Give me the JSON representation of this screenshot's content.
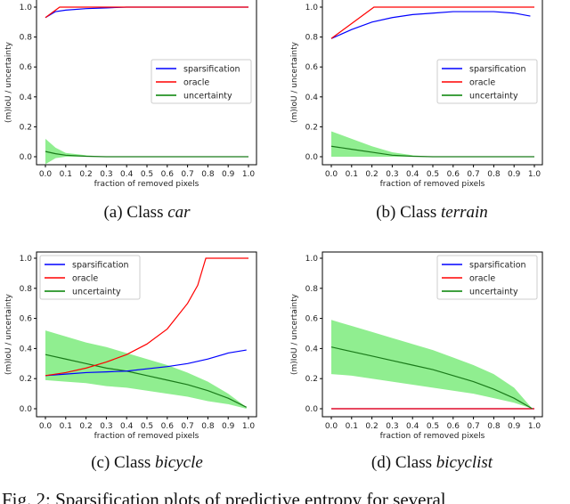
{
  "figure_caption": "Fig. 2: Sparsification plots of predictive entropy for several",
  "colors": {
    "sparsification": "#0000ff",
    "oracle": "#ff0000",
    "uncertainty": "#008000",
    "band": "#90ee90"
  },
  "chart_data": [
    {
      "type": "line",
      "caption_prefix": "(a) Class ",
      "caption_class": "car",
      "xlabel": "fraction of removed pixels",
      "ylabel": "(m)IoU / uncertainty",
      "xlim": [
        0,
        1
      ],
      "ylim": [
        0,
        1
      ],
      "legend": "center-right",
      "xticks": [
        "0.0",
        "0.1",
        "0.2",
        "0.3",
        "0.4",
        "0.5",
        "0.6",
        "0.7",
        "0.8",
        "0.9",
        "1.0"
      ],
      "yticks": [
        "0.0",
        "0.2",
        "0.4",
        "0.6",
        "0.8",
        "1.0"
      ],
      "series": [
        {
          "name": "sparsification",
          "x": [
            0,
            0.05,
            0.1,
            0.2,
            0.3,
            0.4,
            1.0
          ],
          "y": [
            0.93,
            0.97,
            0.98,
            0.99,
            0.995,
            1.0,
            1.0
          ]
        },
        {
          "name": "oracle",
          "x": [
            0,
            0.07,
            1.0
          ],
          "y": [
            0.93,
            1.0,
            1.0
          ]
        },
        {
          "name": "uncertainty",
          "x": [
            0,
            0.05,
            0.1,
            0.2,
            0.3,
            1.0
          ],
          "y": [
            0.035,
            0.02,
            0.01,
            0.003,
            0,
            0
          ],
          "upper": [
            0.12,
            0.06,
            0.025,
            0.01,
            0,
            0
          ],
          "lower": [
            -0.05,
            -0.01,
            0,
            0,
            0,
            0
          ]
        }
      ]
    },
    {
      "type": "line",
      "caption_prefix": "(b) Class ",
      "caption_class": "terrain",
      "xlabel": "fraction of removed pixels",
      "ylabel": "(m)IoU / uncertainty",
      "xlim": [
        0,
        1
      ],
      "ylim": [
        0,
        1
      ],
      "legend": "center-right",
      "xticks": [
        "0.0",
        "0.1",
        "0.2",
        "0.3",
        "0.4",
        "0.5",
        "0.6",
        "0.7",
        "0.8",
        "0.9",
        "1.0"
      ],
      "yticks": [
        "0.0",
        "0.2",
        "0.4",
        "0.6",
        "0.8",
        "1.0"
      ],
      "series": [
        {
          "name": "sparsification",
          "x": [
            0,
            0.1,
            0.2,
            0.3,
            0.4,
            0.5,
            0.6,
            0.7,
            0.8,
            0.9,
            0.98
          ],
          "y": [
            0.79,
            0.85,
            0.9,
            0.93,
            0.95,
            0.96,
            0.97,
            0.97,
            0.97,
            0.96,
            0.94
          ]
        },
        {
          "name": "oracle",
          "x": [
            0,
            0.21,
            1.0
          ],
          "y": [
            0.79,
            1.0,
            1.0
          ]
        },
        {
          "name": "uncertainty",
          "x": [
            0,
            0.1,
            0.2,
            0.3,
            0.4,
            0.5,
            1.0
          ],
          "y": [
            0.07,
            0.05,
            0.03,
            0.01,
            0.003,
            0,
            0
          ],
          "upper": [
            0.17,
            0.12,
            0.07,
            0.03,
            0.01,
            0,
            0
          ],
          "lower": [
            0,
            0,
            0,
            0,
            0,
            0,
            0
          ]
        }
      ]
    },
    {
      "type": "line",
      "caption_prefix": "(c) Class ",
      "caption_class": "bicycle",
      "xlabel": "fraction of removed pixels",
      "ylabel": "(m)IoU / uncertainty",
      "xlim": [
        0,
        1
      ],
      "ylim": [
        0,
        1
      ],
      "legend": "upper-left",
      "xticks": [
        "0.0",
        "0.1",
        "0.2",
        "0.3",
        "0.4",
        "0.5",
        "0.6",
        "0.7",
        "0.8",
        "0.9",
        "1.0"
      ],
      "yticks": [
        "0.0",
        "0.2",
        "0.4",
        "0.6",
        "0.8",
        "1.0"
      ],
      "series": [
        {
          "name": "sparsification",
          "x": [
            0,
            0.1,
            0.2,
            0.3,
            0.4,
            0.5,
            0.6,
            0.7,
            0.8,
            0.9,
            0.99
          ],
          "y": [
            0.22,
            0.23,
            0.24,
            0.245,
            0.25,
            0.265,
            0.28,
            0.3,
            0.33,
            0.37,
            0.39
          ]
        },
        {
          "name": "oracle",
          "x": [
            0,
            0.1,
            0.2,
            0.3,
            0.4,
            0.5,
            0.6,
            0.7,
            0.75,
            0.79,
            1.0
          ],
          "y": [
            0.22,
            0.24,
            0.27,
            0.31,
            0.36,
            0.43,
            0.53,
            0.7,
            0.82,
            1.0,
            1.0
          ]
        },
        {
          "name": "uncertainty",
          "x": [
            0,
            0.1,
            0.2,
            0.3,
            0.4,
            0.5,
            0.6,
            0.7,
            0.8,
            0.9,
            0.99
          ],
          "y": [
            0.36,
            0.33,
            0.3,
            0.27,
            0.25,
            0.22,
            0.19,
            0.16,
            0.12,
            0.07,
            0.01
          ],
          "upper": [
            0.52,
            0.48,
            0.44,
            0.41,
            0.37,
            0.33,
            0.29,
            0.24,
            0.18,
            0.1,
            0.01
          ],
          "lower": [
            0.19,
            0.18,
            0.17,
            0.15,
            0.14,
            0.12,
            0.1,
            0.08,
            0.05,
            0.03,
            0.0
          ]
        }
      ]
    },
    {
      "type": "line",
      "caption_prefix": "(d) Class ",
      "caption_class": "bicyclist",
      "xlabel": "fraction of removed pixels",
      "ylabel": "(m)IoU / uncertainty",
      "xlim": [
        0,
        1
      ],
      "ylim": [
        0,
        1
      ],
      "legend": "upper-right",
      "xticks": [
        "0.0",
        "0.1",
        "0.2",
        "0.3",
        "0.4",
        "0.5",
        "0.6",
        "0.7",
        "0.8",
        "0.9",
        "1.0"
      ],
      "yticks": [
        "0.0",
        "0.2",
        "0.4",
        "0.6",
        "0.8",
        "1.0"
      ],
      "series": [
        {
          "name": "sparsification",
          "x": [
            0,
            1.0
          ],
          "y": [
            0,
            0
          ]
        },
        {
          "name": "oracle",
          "x": [
            0,
            1.0
          ],
          "y": [
            0,
            0
          ]
        },
        {
          "name": "uncertainty",
          "x": [
            0,
            0.1,
            0.2,
            0.3,
            0.4,
            0.5,
            0.6,
            0.7,
            0.8,
            0.9,
            0.99
          ],
          "y": [
            0.41,
            0.38,
            0.35,
            0.32,
            0.29,
            0.26,
            0.22,
            0.18,
            0.13,
            0.07,
            0.0
          ],
          "upper": [
            0.59,
            0.55,
            0.51,
            0.47,
            0.43,
            0.39,
            0.34,
            0.29,
            0.23,
            0.14,
            0.0
          ],
          "lower": [
            0.23,
            0.22,
            0.2,
            0.18,
            0.16,
            0.14,
            0.12,
            0.1,
            0.07,
            0.04,
            0.0
          ]
        }
      ]
    }
  ]
}
